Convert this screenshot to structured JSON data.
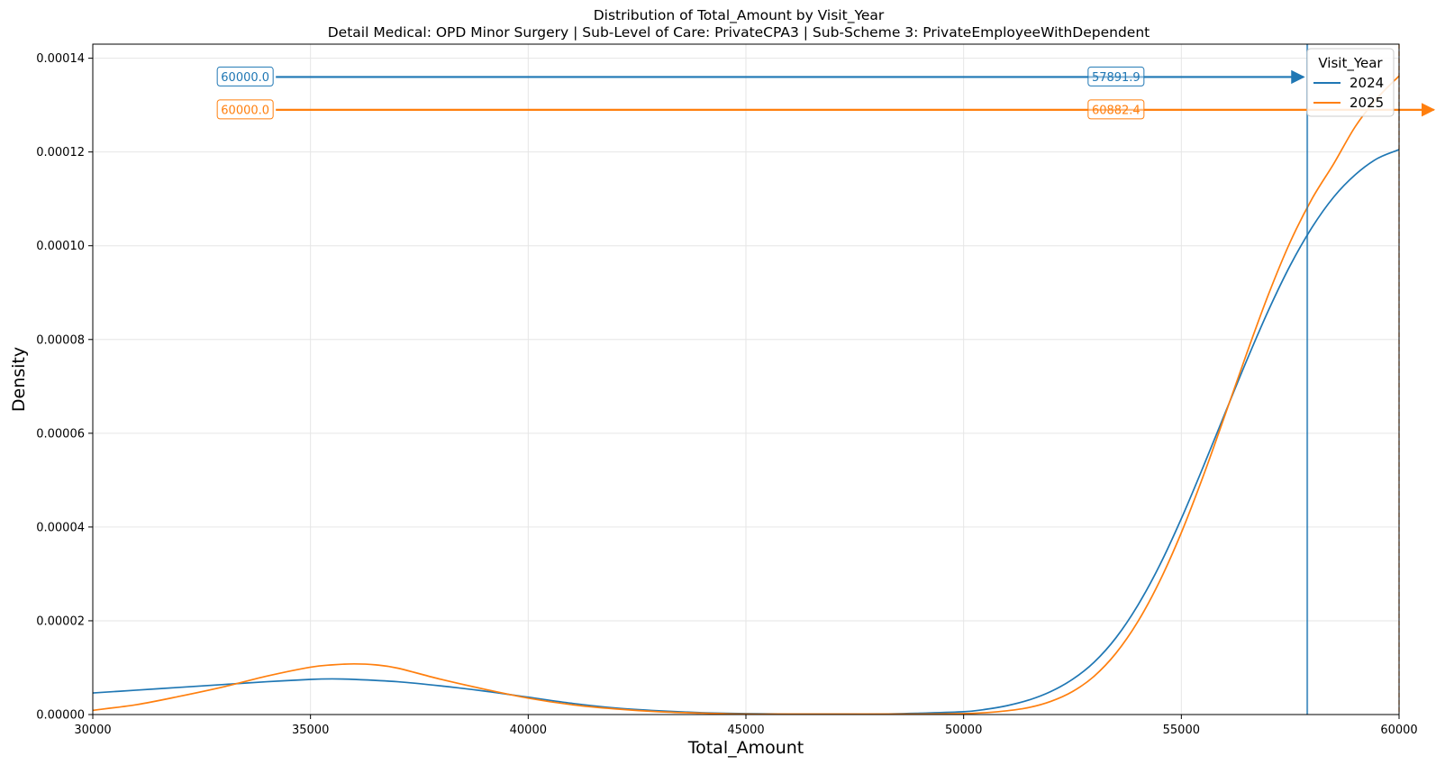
{
  "chart_data": {
    "type": "line",
    "title": "Distribution of Total_Amount by Visit_Year",
    "subtitle": "Detail Medical: OPD Minor Surgery | Sub-Level of Care: PrivateCPA3 | Sub-Scheme 3: PrivateEmployeeWithDependent",
    "xlabel": "Total_Amount",
    "ylabel": "Density",
    "xlim": [
      30000,
      60000
    ],
    "ylim": [
      0,
      0.000143
    ],
    "x_ticks": [
      "30000",
      "35000",
      "40000",
      "45000",
      "50000",
      "55000",
      "60000"
    ],
    "y_ticks": [
      "0.00000",
      "0.00002",
      "0.00004",
      "0.00006",
      "0.00008",
      "0.00010",
      "0.00012",
      "0.00014"
    ],
    "grid": true,
    "legend": {
      "title": "Visit_Year",
      "placement": "top-right"
    },
    "series": [
      {
        "name": "2024",
        "color": "#1f77b4",
        "x": [
          30000,
          31000,
          32000,
          33000,
          34000,
          35000,
          35500,
          36000,
          37000,
          38000,
          39000,
          40000,
          41000,
          42000,
          43000,
          44000,
          45000,
          46000,
          47000,
          48000,
          49000,
          50000,
          50500,
          51000,
          51500,
          52000,
          52500,
          53000,
          53500,
          54000,
          54500,
          55000,
          55500,
          56000,
          56500,
          57000,
          57500,
          58000,
          58500,
          59000,
          59500,
          60000
        ],
        "y": [
          4.6e-06,
          5.2e-06,
          5.8e-06,
          6.4e-06,
          7e-06,
          7.5e-06,
          7.6e-06,
          7.5e-06,
          7e-06,
          6.1e-06,
          5e-06,
          3.7e-06,
          2.4e-06,
          1.4e-06,
          8e-07,
          4e-07,
          2e-07,
          1e-07,
          1e-07,
          1e-07,
          3e-07,
          6e-07,
          1.1e-06,
          1.9e-06,
          3.1e-06,
          4.9e-06,
          7.5e-06,
          1.12e-05,
          1.64e-05,
          2.33e-05,
          3.18e-05,
          4.18e-05,
          5.28e-05,
          6.42e-05,
          7.55e-05,
          8.62e-05,
          9.58e-05,
          0.0001039,
          0.0001104,
          0.0001152,
          0.0001186,
          0.0001205
        ]
      },
      {
        "name": "2025",
        "color": "#ff7f0e",
        "x": [
          30000,
          31000,
          32000,
          33000,
          34000,
          35000,
          35500,
          36000,
          36500,
          37000,
          38000,
          39000,
          40000,
          41000,
          42000,
          43000,
          44000,
          45000,
          46000,
          47000,
          48000,
          49000,
          50000,
          50500,
          51000,
          51500,
          52000,
          52500,
          53000,
          53500,
          54000,
          54500,
          55000,
          55500,
          56000,
          56500,
          57000,
          57500,
          58000,
          58500,
          59000,
          59500,
          60000
        ],
        "y": [
          9e-07,
          2.1e-06,
          3.9e-06,
          5.9e-06,
          8.2e-06,
          1.01e-05,
          1.06e-05,
          1.08e-05,
          1.06e-05,
          9.9e-06,
          7.5e-06,
          5.4e-06,
          3.5e-06,
          2.1e-06,
          1.2e-06,
          6e-07,
          3e-07,
          1e-07,
          1e-07,
          1e-07,
          1e-07,
          1e-07,
          2e-07,
          4e-07,
          8e-07,
          1.5e-06,
          2.8e-06,
          4.9e-06,
          8.2e-06,
          1.31e-05,
          1.98e-05,
          2.84e-05,
          3.88e-05,
          5.08e-05,
          6.38e-05,
          7.7e-05,
          8.96e-05,
          0.0001008,
          0.00011,
          0.0001175,
          0.0001255,
          0.0001315,
          0.0001362
        ]
      }
    ],
    "vertical_lines": [
      {
        "series": "2024",
        "x": 57891.9,
        "style": "solid"
      },
      {
        "series": "2025",
        "x": 60000,
        "style": "dashed"
      }
    ],
    "annotations": [
      {
        "series": "2024",
        "label": "60000.0",
        "x_start": 33500,
        "x_end": 57891.9,
        "y": 0.000136
      },
      {
        "series": "2024",
        "label": "57891.9",
        "x_start": 33500,
        "x_end": 57891.9,
        "y": 0.000136,
        "label_x": 53500
      },
      {
        "series": "2025",
        "label": "60000.0",
        "x_start": 33500,
        "x_end": 60882.4,
        "y": 0.000129
      },
      {
        "series": "2025",
        "label": "60882.4",
        "x_start": 33500,
        "x_end": 60882.4,
        "y": 0.000129,
        "label_x": 53500
      }
    ]
  }
}
